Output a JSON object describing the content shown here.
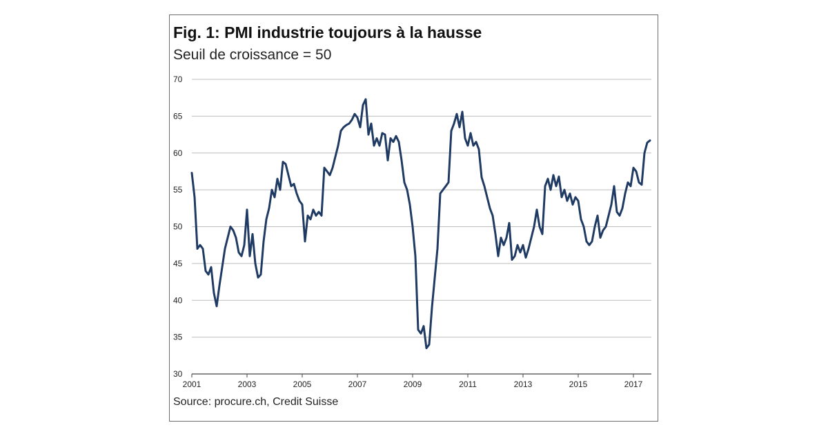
{
  "chart_data": {
    "type": "line",
    "title": "Fig. 1: PMI industrie toujours à la hausse",
    "subtitle": "Seuil de croissance = 50",
    "source": "Source: procure.ch, Credit Suisse",
    "xlabel": "",
    "ylabel": "",
    "xlim": [
      2001,
      2017.65
    ],
    "ylim": [
      30,
      70
    ],
    "yticks": [
      30,
      35,
      40,
      45,
      50,
      55,
      60,
      65,
      70
    ],
    "xticks": [
      2001,
      2003,
      2005,
      2007,
      2009,
      2011,
      2013,
      2015,
      2017
    ],
    "xtick_labels": [
      "2001",
      "2003",
      "2005",
      "2007",
      "2009",
      "2011",
      "2013",
      "2015",
      "2017"
    ],
    "grid": "horizontal",
    "line_color": "#1f3a63",
    "series": [
      {
        "x": [
          2001.0,
          2001.1,
          2001.2,
          2001.3,
          2001.4,
          2001.5,
          2001.6,
          2001.7,
          2001.8,
          2001.9,
          2002.0,
          2002.1,
          2002.2,
          2002.3,
          2002.4,
          2002.5,
          2002.6,
          2002.7,
          2002.8,
          2002.9,
          2003.0,
          2003.1,
          2003.2,
          2003.3,
          2003.4,
          2003.5,
          2003.6,
          2003.7,
          2003.8,
          2003.9,
          2004.0,
          2004.1,
          2004.2,
          2004.3,
          2004.4,
          2004.5,
          2004.6,
          2004.7,
          2004.8,
          2004.9,
          2005.0,
          2005.1,
          2005.2,
          2005.3,
          2005.4,
          2005.5,
          2005.6,
          2005.7,
          2005.8,
          2005.9,
          2006.0,
          2006.1,
          2006.2,
          2006.3,
          2006.4,
          2006.5,
          2006.6,
          2006.7,
          2006.8,
          2006.9,
          2007.0,
          2007.1,
          2007.2,
          2007.3,
          2007.4,
          2007.5,
          2007.6,
          2007.7,
          2007.8,
          2007.9,
          2008.0,
          2008.1,
          2008.2,
          2008.3,
          2008.4,
          2008.5,
          2008.6,
          2008.7,
          2008.8,
          2008.9,
          2009.0,
          2009.1,
          2009.2,
          2009.3,
          2009.4,
          2009.5,
          2009.6,
          2009.7,
          2009.8,
          2009.9,
          2010.0,
          2010.1,
          2010.2,
          2010.3,
          2010.4,
          2010.5,
          2010.6,
          2010.7,
          2010.8,
          2010.9,
          2011.0,
          2011.1,
          2011.2,
          2011.3,
          2011.4,
          2011.5,
          2011.6,
          2011.7,
          2011.8,
          2011.9,
          2012.0,
          2012.1,
          2012.2,
          2012.3,
          2012.4,
          2012.5,
          2012.6,
          2012.7,
          2012.8,
          2012.9,
          2013.0,
          2013.1,
          2013.2,
          2013.3,
          2013.4,
          2013.5,
          2013.6,
          2013.7,
          2013.8,
          2013.9,
          2014.0,
          2014.1,
          2014.2,
          2014.3,
          2014.4,
          2014.5,
          2014.6,
          2014.7,
          2014.8,
          2014.9,
          2015.0,
          2015.1,
          2015.2,
          2015.3,
          2015.4,
          2015.5,
          2015.6,
          2015.7,
          2015.8,
          2015.9,
          2016.0,
          2016.1,
          2016.2,
          2016.3,
          2016.4,
          2016.5,
          2016.6,
          2016.7,
          2016.8,
          2016.9,
          2017.0,
          2017.1,
          2017.2,
          2017.3,
          2017.4,
          2017.5,
          2017.6
        ],
        "y": [
          57.3,
          54,
          47,
          47.5,
          47,
          44,
          43.5,
          44.5,
          41,
          39.2,
          42,
          44.5,
          47,
          48.5,
          50,
          49.5,
          48.5,
          46.5,
          46,
          47.5,
          52.3,
          46,
          49,
          45,
          43.1,
          43.5,
          48,
          51,
          52.5,
          55,
          54,
          56.5,
          55,
          58.8,
          58.5,
          57,
          55.5,
          55.8,
          54.5,
          53.5,
          53,
          48,
          51.5,
          51,
          52.3,
          51.5,
          52,
          51.5,
          58,
          57.5,
          57,
          58,
          59.5,
          61,
          63,
          63.5,
          63.8,
          64,
          64.5,
          65.3,
          64.8,
          63.5,
          66.5,
          67.3,
          62.5,
          64,
          61,
          62,
          61,
          62.7,
          62.5,
          59,
          62,
          61.5,
          62.3,
          61.5,
          59,
          56,
          55,
          53,
          50,
          46,
          36,
          35.5,
          36.5,
          33.5,
          34,
          39,
          43,
          47,
          54.5,
          55,
          55.5,
          56,
          63,
          64,
          65.3,
          63.5,
          65.6,
          62,
          61,
          62.7,
          61,
          61.5,
          60.5,
          56.7,
          55.5,
          54,
          52.5,
          51.5,
          49,
          46,
          48.5,
          47.5,
          48.5,
          50.5,
          45.5,
          46,
          47.5,
          46.5,
          47.5,
          45.8,
          47,
          48.5,
          50,
          52.3,
          50,
          49,
          55.5,
          56.5,
          55,
          57,
          55.5,
          56.8,
          54,
          55,
          53.5,
          54.5,
          53,
          54,
          53.5,
          51,
          50,
          48,
          47.5,
          48,
          50,
          51.5,
          48.5,
          49.5,
          50,
          51.5,
          53,
          55.5,
          52,
          51.5,
          52.5,
          54.5,
          56,
          55.5,
          58,
          57.5,
          56,
          55.7,
          60,
          61.4,
          61.7
        ]
      }
    ]
  }
}
